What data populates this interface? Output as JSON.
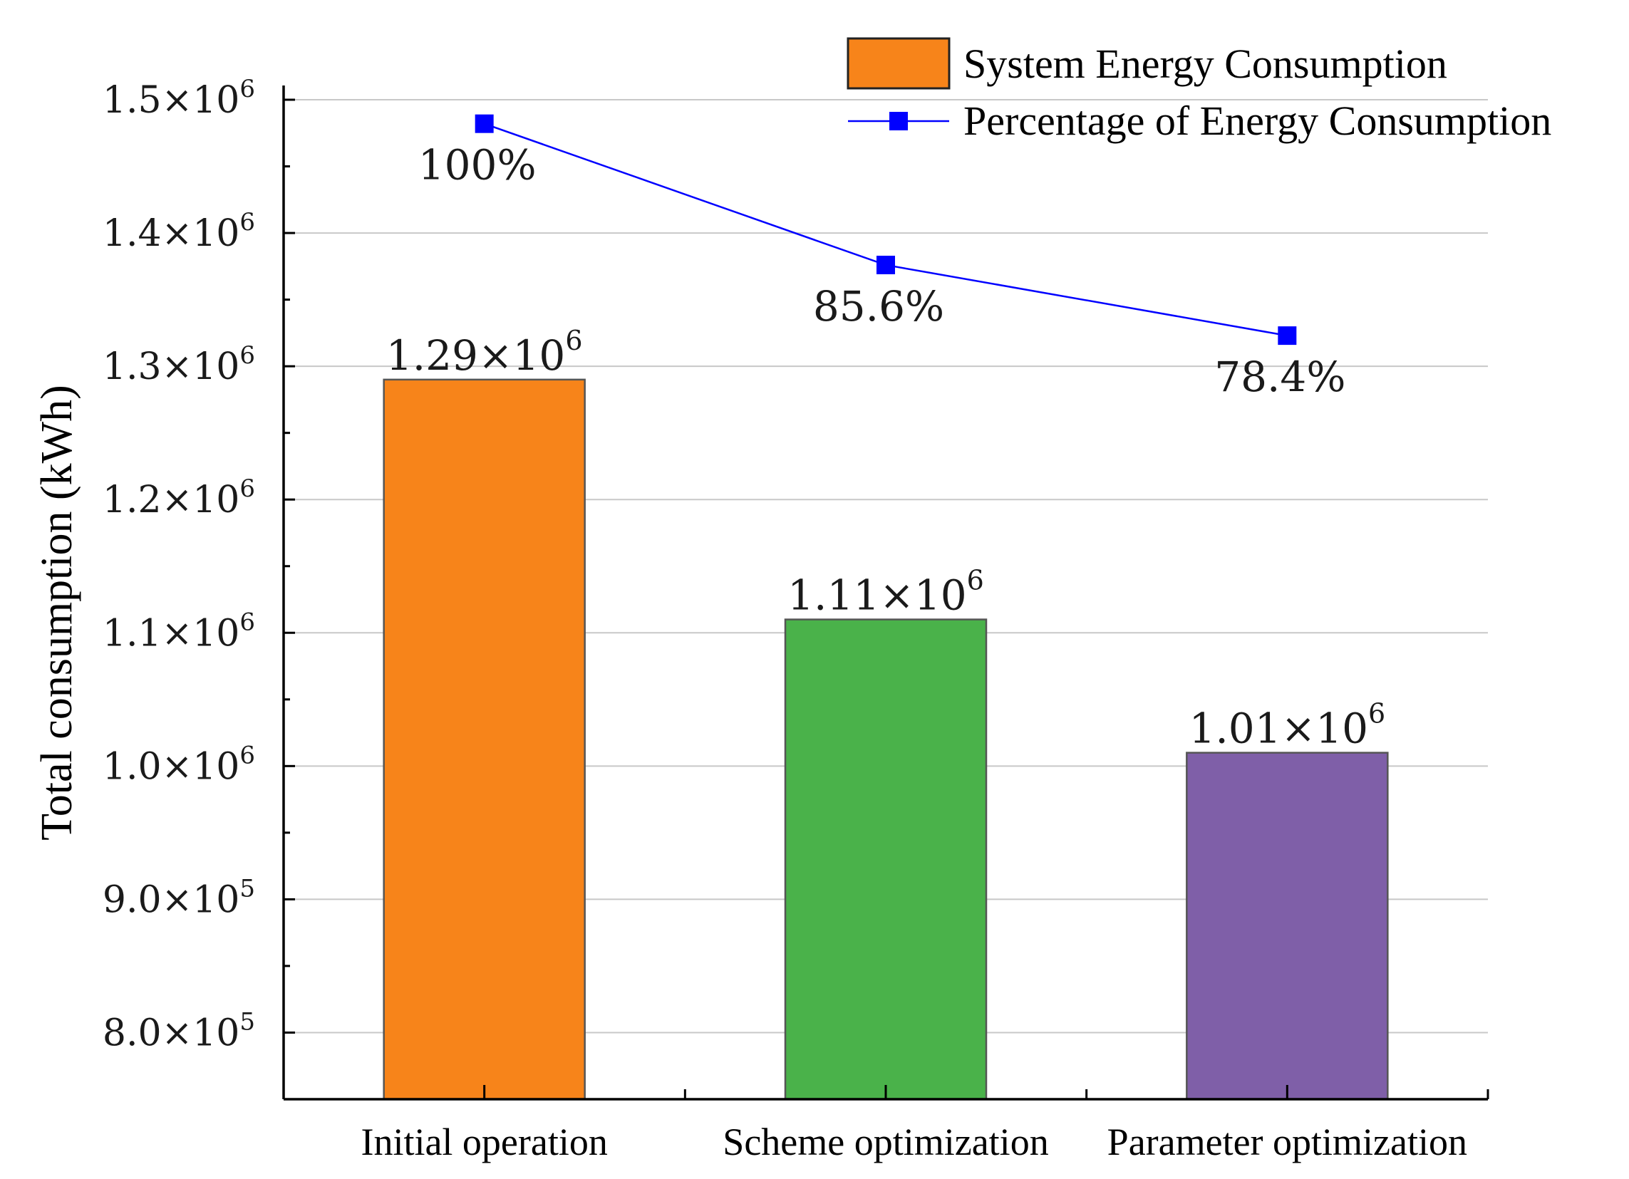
{
  "chart_data": {
    "type": "bar",
    "ylabel": "Total consumption (kWh)",
    "ylim": [
      750000,
      1500000
    ],
    "yticks": [
      {
        "value": 800000,
        "mantissa": "8.0×10",
        "exp": "5"
      },
      {
        "value": 900000,
        "mantissa": "9.0×10",
        "exp": "5"
      },
      {
        "value": 1000000,
        "mantissa": "1.0×10",
        "exp": "6"
      },
      {
        "value": 1100000,
        "mantissa": "1.1×10",
        "exp": "6"
      },
      {
        "value": 1200000,
        "mantissa": "1.2×10",
        "exp": "6"
      },
      {
        "value": 1300000,
        "mantissa": "1.3×10",
        "exp": "6"
      },
      {
        "value": 1400000,
        "mantissa": "1.4×10",
        "exp": "6"
      },
      {
        "value": 1500000,
        "mantissa": "1.5×10",
        "exp": "6"
      }
    ],
    "grid": true,
    "categories": [
      "Initial operation",
      "Scheme optimization",
      "Parameter optimization"
    ],
    "series": [
      {
        "name": "System Energy Consumption",
        "kind": "bar",
        "values": [
          1290000,
          1110000,
          1010000
        ],
        "labels": [
          {
            "mantissa": "1.29×10",
            "exp": "6"
          },
          {
            "mantissa": "1.11×10",
            "exp": "6"
          },
          {
            "mantissa": "1.01×10",
            "exp": "6"
          }
        ],
        "colors": [
          "#F7841A",
          "#4AB24A",
          "#7F5FA8"
        ]
      },
      {
        "name": "Percentage of Energy Consumption",
        "kind": "line",
        "values": [
          100,
          85.6,
          78.4
        ],
        "labels": [
          "100%",
          "85.6%",
          "78.4%"
        ],
        "plotted_at": [
          1482000,
          1376000,
          1323000
        ],
        "color": "#0000FF"
      }
    ],
    "legend": "top-right"
  }
}
